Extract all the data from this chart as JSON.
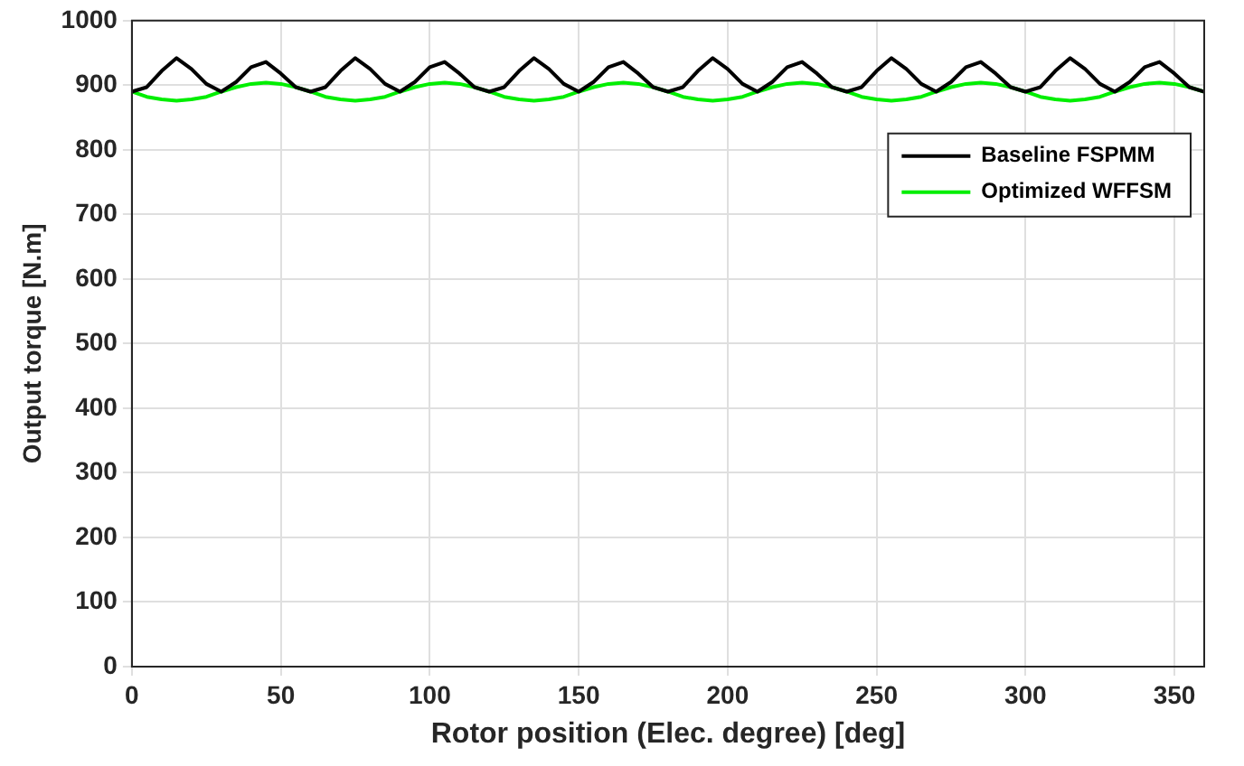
{
  "chart_data": {
    "type": "line",
    "xlabel": "Rotor position (Elec. degree) [deg]",
    "ylabel": "Output torque [N.m]",
    "x": [
      0,
      5,
      10,
      15,
      20,
      25,
      30,
      35,
      40,
      45,
      50,
      55,
      60,
      65,
      70,
      75,
      80,
      85,
      90,
      95,
      100,
      105,
      110,
      115,
      120,
      125,
      130,
      135,
      140,
      145,
      150,
      155,
      160,
      165,
      170,
      175,
      180,
      185,
      190,
      195,
      200,
      205,
      210,
      215,
      220,
      225,
      230,
      235,
      240,
      245,
      250,
      255,
      260,
      265,
      270,
      275,
      280,
      285,
      290,
      295,
      300,
      305,
      310,
      315,
      320,
      325,
      330,
      335,
      340,
      345,
      350,
      355,
      360
    ],
    "series": [
      {
        "name": "Baseline FSPMM",
        "color": "#000000",
        "values": [
          890,
          897,
          922,
          942,
          925,
          902,
          890,
          905,
          928,
          936,
          918,
          897,
          890,
          897,
          922,
          942,
          925,
          902,
          890,
          905,
          928,
          936,
          918,
          897,
          890,
          897,
          922,
          942,
          925,
          902,
          890,
          905,
          928,
          936,
          918,
          897,
          890,
          897,
          922,
          942,
          925,
          902,
          890,
          905,
          928,
          936,
          918,
          897,
          890,
          897,
          922,
          942,
          925,
          902,
          890,
          905,
          928,
          936,
          918,
          897,
          890,
          897,
          922,
          942,
          925,
          902,
          890,
          905,
          928,
          936,
          918,
          897,
          890
        ]
      },
      {
        "name": "Optimized WFFSM",
        "color": "#00ee00",
        "values": [
          890,
          882,
          878,
          876,
          878,
          882,
          890,
          897,
          902,
          904,
          902,
          897,
          890,
          882,
          878,
          876,
          878,
          882,
          890,
          897,
          902,
          904,
          902,
          897,
          890,
          882,
          878,
          876,
          878,
          882,
          890,
          897,
          902,
          904,
          902,
          897,
          890,
          882,
          878,
          876,
          878,
          882,
          890,
          897,
          902,
          904,
          902,
          897,
          890,
          882,
          878,
          876,
          878,
          882,
          890,
          897,
          902,
          904,
          902,
          897,
          890,
          882,
          878,
          876,
          878,
          882,
          890,
          897,
          902,
          904,
          902,
          897,
          890
        ]
      }
    ],
    "xlim": [
      0,
      360
    ],
    "xticks": [
      0,
      50,
      100,
      150,
      200,
      250,
      300,
      350
    ],
    "ylim": [
      0,
      1000
    ],
    "yticks": [
      0,
      100,
      200,
      300,
      400,
      500,
      600,
      700,
      800,
      900,
      1000
    ],
    "grid": true,
    "legend": "top right",
    "marker": "none",
    "line_style": "solid"
  }
}
